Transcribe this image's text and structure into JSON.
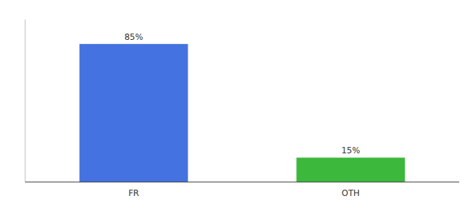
{
  "chart_data": {
    "type": "bar",
    "categories": [
      "FR",
      "OTH"
    ],
    "values": [
      85,
      15
    ],
    "value_labels": [
      "85%",
      "15%"
    ],
    "colors": [
      "#4472E0",
      "#3CB83C"
    ],
    "ylim": [
      0,
      100
    ],
    "yticks": [],
    "tick_labels": "x",
    "data_labels": true
  }
}
